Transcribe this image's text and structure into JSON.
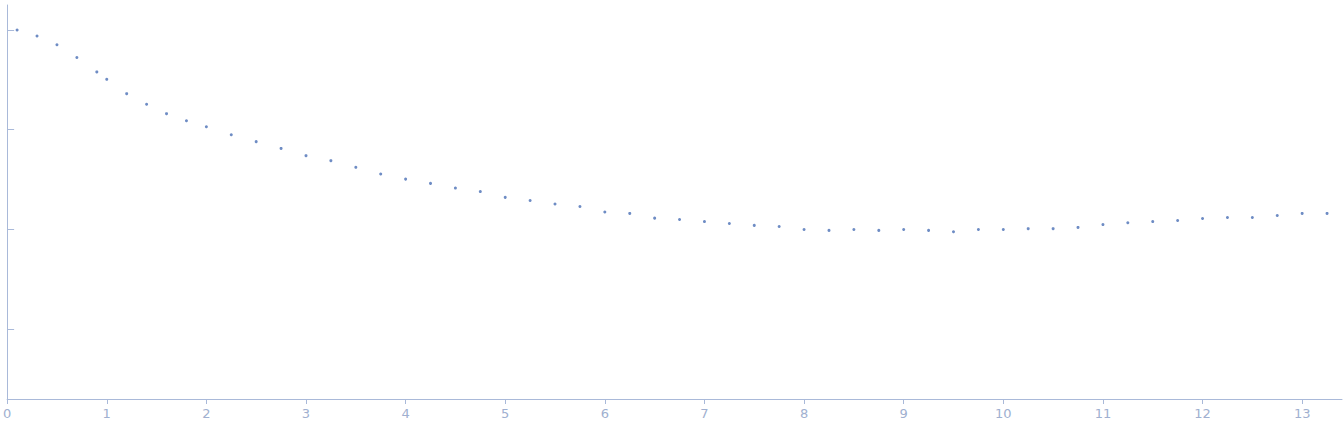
{
  "chart_data": {
    "type": "scatter",
    "color": "#4a6fb5",
    "log": "y",
    "tick_labels": "x",
    "grid": false,
    "marker": "circle",
    "x": [
      0.1,
      0.3,
      0.5,
      0.7,
      0.9,
      1.0,
      1.2,
      1.4,
      1.6,
      1.8,
      2.0,
      2.25,
      2.5,
      2.75,
      3.0,
      3.25,
      3.5,
      3.75,
      4.0,
      4.25,
      4.5,
      4.75,
      5.0,
      5.25,
      5.5,
      5.75,
      6.0,
      6.25,
      6.5,
      6.75,
      7.0,
      7.25,
      7.5,
      7.75,
      8.0,
      8.25,
      8.5,
      8.75,
      9.0,
      9.25,
      9.5,
      9.75,
      10.0,
      10.25,
      10.5,
      10.75,
      11.0,
      11.25,
      11.5,
      11.75,
      12.0,
      12.25,
      12.5,
      12.75,
      13.0,
      13.25
    ],
    "values": [
      1.0,
      0.87,
      0.71,
      0.53,
      0.38,
      0.32,
      0.23,
      0.18,
      0.145,
      0.123,
      0.107,
      0.089,
      0.076,
      0.065,
      0.055,
      0.049,
      0.042,
      0.036,
      0.032,
      0.029,
      0.026,
      0.024,
      0.021,
      0.0195,
      0.018,
      0.017,
      0.015,
      0.0145,
      0.013,
      0.0126,
      0.012,
      0.0115,
      0.011,
      0.0107,
      0.01,
      0.0098,
      0.01,
      0.0098,
      0.01,
      0.0098,
      0.0095,
      0.01,
      0.01,
      0.0102,
      0.0102,
      0.0105,
      0.0112,
      0.0117,
      0.012,
      0.0123,
      0.0129,
      0.0132,
      0.0132,
      0.0138,
      0.0145,
      0.0145
    ],
    "xlim": [
      0,
      13.4
    ],
    "xticks": [
      0,
      1,
      2,
      3,
      4,
      5,
      6,
      7,
      8,
      9,
      10,
      11,
      12,
      13
    ],
    "ylim": [
      0.0002,
      1.78
    ],
    "yticks": [
      0.001,
      0.01,
      0.1,
      1
    ]
  }
}
